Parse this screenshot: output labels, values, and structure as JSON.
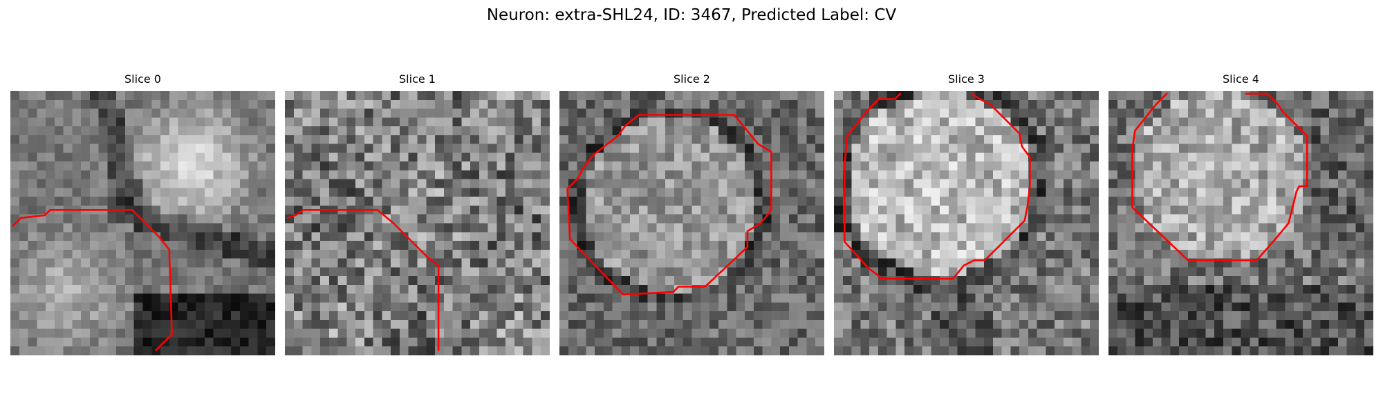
{
  "figure": {
    "title": "Neuron: extra-SHL24, ID: 3467, Predicted Label: CV",
    "contour_color": "#ff0000",
    "colormap": "grayscale"
  },
  "slices": [
    {
      "title": "Slice 0",
      "description": "grayscale EM crop; large bright cell body upper-right; darker process below; red contour tracing the lower-left boundary",
      "contour_points": [
        [
          0.01,
          0.51
        ],
        [
          0.04,
          0.48
        ],
        [
          0.13,
          0.47
        ],
        [
          0.15,
          0.45
        ],
        [
          0.46,
          0.45
        ],
        [
          0.56,
          0.55
        ],
        [
          0.6,
          0.6
        ],
        [
          0.61,
          0.92
        ],
        [
          0.55,
          0.98
        ]
      ]
    },
    {
      "title": "Slice 1",
      "description": "noisy grayscale EM crop; red contour tracing a boundary across the upper-left and down the right side",
      "contour_points": [
        [
          0.01,
          0.48
        ],
        [
          0.04,
          0.47
        ],
        [
          0.07,
          0.45
        ],
        [
          0.35,
          0.45
        ],
        [
          0.41,
          0.5
        ],
        [
          0.43,
          0.52
        ],
        [
          0.44,
          0.53
        ],
        [
          0.54,
          0.63
        ],
        [
          0.58,
          0.66
        ],
        [
          0.58,
          0.98
        ]
      ]
    },
    {
      "title": "Slice 2",
      "description": "grayscale EM crop; round cell body centered, enclosed by a red octagonal contour",
      "contour_points": [
        [
          0.3,
          0.09
        ],
        [
          0.66,
          0.09
        ],
        [
          0.75,
          0.2
        ],
        [
          0.8,
          0.23
        ],
        [
          0.8,
          0.45
        ],
        [
          0.76,
          0.5
        ],
        [
          0.71,
          0.53
        ],
        [
          0.71,
          0.59
        ],
        [
          0.55,
          0.74
        ],
        [
          0.45,
          0.74
        ],
        [
          0.43,
          0.76
        ],
        [
          0.24,
          0.77
        ],
        [
          0.04,
          0.56
        ],
        [
          0.03,
          0.37
        ],
        [
          0.07,
          0.33
        ],
        [
          0.09,
          0.29
        ],
        [
          0.13,
          0.24
        ],
        [
          0.22,
          0.17
        ],
        [
          0.25,
          0.13
        ],
        [
          0.3,
          0.09
        ]
      ]
    },
    {
      "title": "Slice 3",
      "description": "grayscale EM crop; bright round cell body enclosed by a red contour open at the top",
      "contour_points": [
        [
          0.25,
          0.01
        ],
        [
          0.23,
          0.03
        ],
        [
          0.17,
          0.03
        ],
        [
          0.13,
          0.07
        ],
        [
          0.05,
          0.17
        ],
        [
          0.04,
          0.28
        ],
        [
          0.04,
          0.57
        ],
        [
          0.13,
          0.67
        ],
        [
          0.17,
          0.7
        ],
        [
          0.17,
          0.7
        ],
        [
          0.18,
          0.71
        ],
        [
          0.45,
          0.71
        ],
        [
          0.49,
          0.66
        ],
        [
          0.53,
          0.64
        ],
        [
          0.57,
          0.64
        ],
        [
          0.65,
          0.56
        ],
        [
          0.72,
          0.49
        ],
        [
          0.73,
          0.44
        ],
        [
          0.74,
          0.36
        ],
        [
          0.74,
          0.25
        ],
        [
          0.71,
          0.21
        ],
        [
          0.7,
          0.16
        ],
        [
          0.59,
          0.05
        ],
        [
          0.55,
          0.03
        ],
        [
          0.52,
          0.01
        ]
      ]
    },
    {
      "title": "Slice 4",
      "description": "grayscale EM crop; round cell body in upper half enclosed by a red contour open at the top",
      "contour_points": [
        [
          0.22,
          0.01
        ],
        [
          0.18,
          0.05
        ],
        [
          0.1,
          0.15
        ],
        [
          0.09,
          0.22
        ],
        [
          0.09,
          0.44
        ],
        [
          0.3,
          0.64
        ],
        [
          0.56,
          0.64
        ],
        [
          0.63,
          0.56
        ],
        [
          0.68,
          0.5
        ],
        [
          0.71,
          0.38
        ],
        [
          0.72,
          0.36
        ],
        [
          0.75,
          0.36
        ],
        [
          0.75,
          0.17
        ],
        [
          0.66,
          0.08
        ],
        [
          0.64,
          0.05
        ],
        [
          0.6,
          0.01
        ],
        [
          0.52,
          0.01
        ]
      ]
    }
  ]
}
